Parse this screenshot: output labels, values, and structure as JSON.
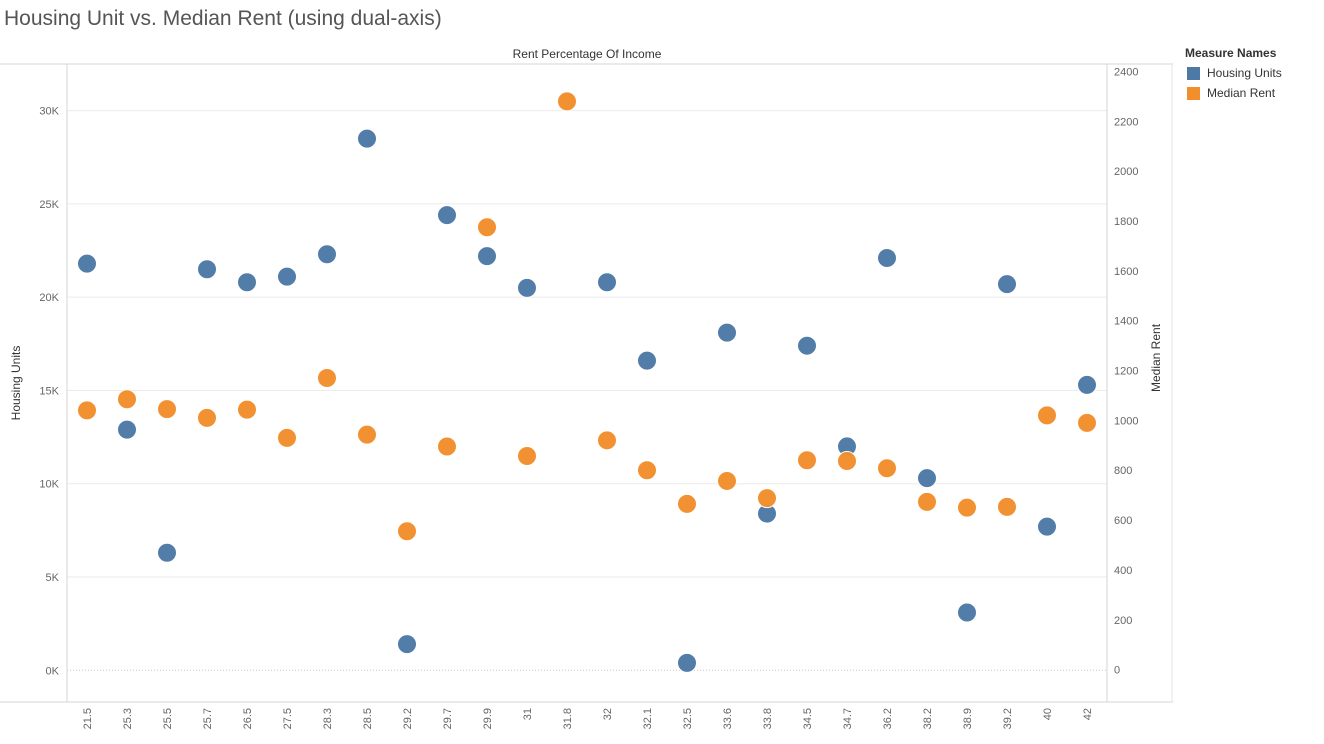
{
  "title": "Housing Unit vs. Median Rent (using dual-axis)",
  "chart_data": {
    "type": "scatter",
    "title": "Housing Unit vs. Median Rent (using dual-axis)",
    "column_header": "Rent Percentage Of Income",
    "categories": [
      "21.5",
      "25.3",
      "25.5",
      "25.7",
      "26.5",
      "27.5",
      "28.3",
      "28.5",
      "29.2",
      "29.7",
      "29.9",
      "31",
      "31.8",
      "32",
      "32.1",
      "32.5",
      "33.6",
      "33.8",
      "34.5",
      "34.7",
      "36.2",
      "38.2",
      "38.9",
      "39.2",
      "40",
      "42"
    ],
    "y_left": {
      "label": "Housing Units",
      "ylim": [
        -1700,
        32500
      ],
      "ticks": [
        0,
        5000,
        10000,
        15000,
        20000,
        25000,
        30000
      ],
      "tick_labels": [
        "0K",
        "5K",
        "10K",
        "15K",
        "20K",
        "25K",
        "30K"
      ]
    },
    "y_right": {
      "label": "Median Rent",
      "ylim": [
        -130,
        2430
      ],
      "ticks": [
        0,
        200,
        400,
        600,
        800,
        1000,
        1200,
        1400,
        1600,
        1800,
        2000,
        2200,
        2400
      ],
      "tick_labels": [
        "0",
        "200",
        "400",
        "600",
        "800",
        "1000",
        "1200",
        "1400",
        "1600",
        "1800",
        "2000",
        "2200",
        "2400"
      ]
    },
    "series": [
      {
        "name": "Housing Units",
        "axis": "left",
        "color": "#4e79a7",
        "values": [
          21800,
          12900,
          6300,
          21500,
          20800,
          21100,
          22300,
          28500,
          1400,
          24400,
          22200,
          20500,
          null,
          20800,
          16600,
          400,
          18100,
          8400,
          17400,
          12000,
          22100,
          10300,
          3100,
          20700,
          7700,
          15300
        ]
      },
      {
        "name": "Median Rent",
        "axis": "right",
        "color": "#f28e2b",
        "values": [
          1040,
          1085,
          1045,
          1010,
          1043,
          930,
          1170,
          943,
          555,
          895,
          1775,
          857,
          2280,
          920,
          800,
          665,
          757,
          688,
          840,
          837,
          808,
          673,
          650,
          653,
          1020,
          990
        ]
      }
    ],
    "legend": {
      "title": "Measure Names",
      "position": "top-right"
    },
    "grid": true
  }
}
